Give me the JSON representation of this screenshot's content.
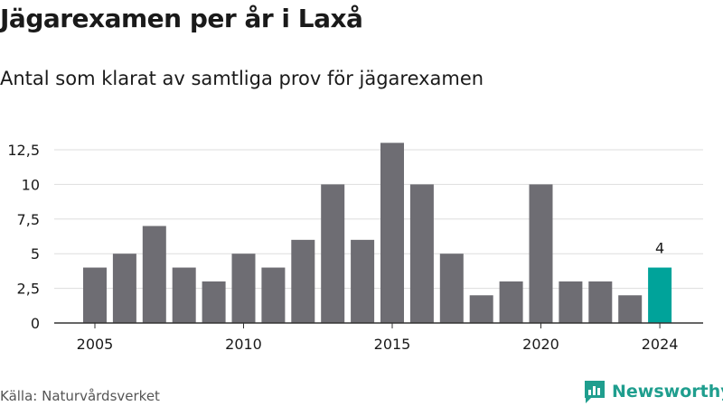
{
  "header": {
    "title": "Jägarexamen per år i Laxå",
    "subtitle": "Antal som klarat av samtliga prov för jägarexamen"
  },
  "footer": {
    "source": "Källa: Naturvårdsverket",
    "brand": "Newsworthy"
  },
  "colors": {
    "bar": "#6e6d73",
    "highlight": "#00a39a",
    "grid": "#dddddd",
    "brand": "#1f9e8e"
  },
  "chart_data": {
    "type": "bar",
    "x": [
      2005,
      2006,
      2007,
      2008,
      2009,
      2010,
      2011,
      2012,
      2013,
      2014,
      2015,
      2016,
      2017,
      2018,
      2019,
      2020,
      2021,
      2022,
      2023,
      2024
    ],
    "values": [
      4,
      5,
      7,
      4,
      3,
      5,
      4,
      6,
      10,
      6,
      13,
      10,
      5,
      2,
      3,
      10,
      3,
      3,
      2,
      4
    ],
    "ylim": [
      0,
      13
    ],
    "yticks": [
      0,
      2.5,
      5,
      7.5,
      10,
      12.5
    ],
    "ytick_labels": [
      "0",
      "2,5",
      "5",
      "7,5",
      "10",
      "12,5"
    ],
    "xticks": [
      2005,
      2010,
      2015,
      2020,
      2024
    ],
    "xtick_labels": [
      "2005",
      "2010",
      "2015",
      "2020",
      "2024"
    ],
    "highlight_x": 2024,
    "data_labels": [
      {
        "x": 2024,
        "text": "4"
      }
    ],
    "grid": true
  }
}
